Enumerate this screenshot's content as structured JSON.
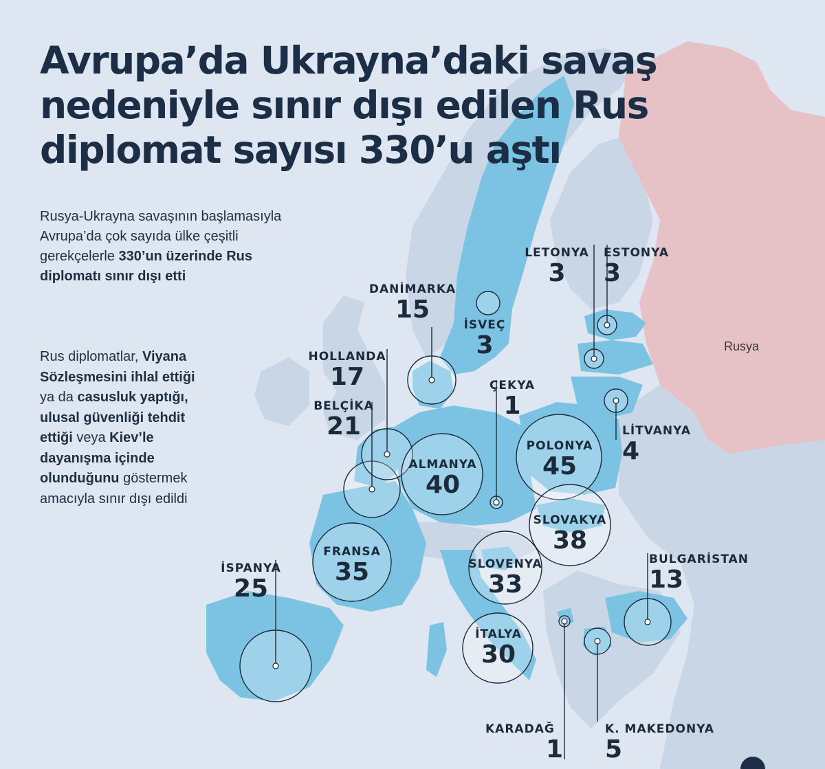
{
  "title": {
    "line1": "Avrupa’da Ukrayna’daki savaş",
    "line2": "nedeniyle sınır dışı edilen Rus",
    "line3": "diplomat sayısı 330’u aştı"
  },
  "intro": {
    "part1": "Rusya-Ukrayna savaşının başlamasıyla Avrupa’da çok sayıda ülke çeşitli gerekçelerle ",
    "part2_bold": "330’un üzerinde Rus diplomatı sınır dışı etti"
  },
  "body": {
    "t1": "Rus diplomatlar, ",
    "b1": "Viyana Sözleşmesini ihlal ettiği",
    "t2": " ya da ",
    "b2": "casusluk yaptığı, ulusal güvenliği tehdit ettiği",
    "t3": " veya ",
    "b3": "Kiev’le dayanışma içinde olunduğunu",
    "t4": " göstermek amacıyla sınır dışı edildi"
  },
  "map": {
    "russia_label": "Rusya",
    "colors": {
      "sea": "#dde6f1",
      "land": "#c9d6e6",
      "expelling_country": "#7cc3e3",
      "russia": "#e6c2c6",
      "text": "#1c2e45"
    }
  },
  "countries": [
    {
      "id": "ispanya",
      "name": "İSPANYA",
      "count": "25"
    },
    {
      "id": "fransa",
      "name": "FRANSA",
      "count": "35"
    },
    {
      "id": "belcika",
      "name": "BELÇİKA",
      "count": "21"
    },
    {
      "id": "hollanda",
      "name": "HOLLANDA",
      "count": "17"
    },
    {
      "id": "danimarka",
      "name": "DANİMARKA",
      "count": "15"
    },
    {
      "id": "isvec",
      "name": "İSVEÇ",
      "count": "3"
    },
    {
      "id": "almanya",
      "name": "ALMANYA",
      "count": "40"
    },
    {
      "id": "cekya",
      "name": "ÇEKYA",
      "count": "1"
    },
    {
      "id": "polonya",
      "name": "POLONYA",
      "count": "45"
    },
    {
      "id": "slovakya",
      "name": "SLOVAKYA",
      "count": "38"
    },
    {
      "id": "slovenya",
      "name": "SLOVENYA",
      "count": "33"
    },
    {
      "id": "italya",
      "name": "İTALYA",
      "count": "30"
    },
    {
      "id": "letonya",
      "name": "LETONYA",
      "count": "3"
    },
    {
      "id": "estonya",
      "name": "ESTONYA",
      "count": "3"
    },
    {
      "id": "litvanya",
      "name": "LİTVANYA",
      "count": "4"
    },
    {
      "id": "bulgaristan",
      "name": "BULGARİSTAN",
      "count": "13"
    },
    {
      "id": "karadag",
      "name": "KARADAĞ",
      "count": "1"
    },
    {
      "id": "makedonya",
      "name": "K. MAKEDONYA",
      "count": "5"
    }
  ]
}
